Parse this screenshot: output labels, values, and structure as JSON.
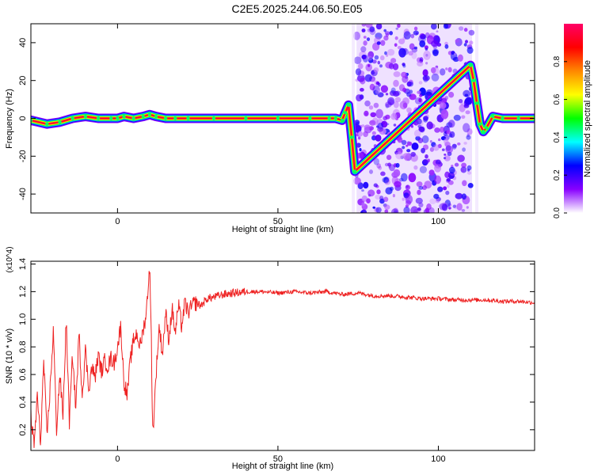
{
  "title": "C2E5.2025.244.06.50.E05",
  "chart_data": [
    {
      "type": "heatmap",
      "xlabel": "Height of straight line (km)",
      "ylabel": "Frequency (Hz)",
      "xlim": [
        -27,
        130
      ],
      "ylim": [
        -50,
        50
      ],
      "x_ticks": [
        0,
        50,
        100
      ],
      "y_ticks": [
        -40,
        -20,
        0,
        20,
        40
      ],
      "colorbar": {
        "label": "Normalized spectral amplitude",
        "range": [
          0,
          1
        ],
        "ticks": [
          "0.0",
          "0.2",
          "0.4",
          "0.6",
          "0.8"
        ],
        "tick_values": [
          0,
          0.2,
          0.4,
          0.6,
          0.8
        ],
        "colormap": [
          "#ffffff",
          "#8800ff",
          "#0000ff",
          "#00ffff",
          "#00ff00",
          "#ffff00",
          "#ff8800",
          "#ff0000",
          "#ff0066"
        ]
      },
      "ridge": {
        "x": [
          -27,
          -22,
          -18,
          -14,
          -10,
          -6,
          -2,
          0,
          2,
          5,
          8,
          10,
          12,
          15,
          18,
          22,
          30,
          40,
          50,
          60,
          66,
          68,
          70,
          71,
          72,
          73,
          74,
          110,
          111,
          112,
          113,
          114,
          115,
          117,
          120,
          125,
          130
        ],
        "y": [
          -1,
          -3,
          -2,
          0,
          1,
          0,
          0,
          0,
          1,
          0,
          1,
          2,
          1,
          0,
          0,
          0,
          0,
          0,
          0,
          0,
          0,
          0,
          -1,
          3,
          7,
          -10,
          -28,
          28,
          20,
          8,
          -3,
          -7,
          -5,
          1,
          0,
          0,
          0
        ],
        "peak_amplitude": 1.0
      },
      "noise_region": {
        "x_range": [
          74.5,
          110.5
        ],
        "y_range": [
          -50,
          50
        ],
        "amplitude_range": [
          0.05,
          0.25
        ]
      }
    },
    {
      "type": "line",
      "xlabel": "Height of straight line (km)",
      "ylabel": "SNR (10 * v/v)",
      "y_exponent": "(x10^4)",
      "xlim": [
        -27,
        130
      ],
      "ylim": [
        0.05,
        1.42
      ],
      "x_ticks": [
        0,
        50,
        100
      ],
      "y_ticks": [
        0.2,
        0.4,
        0.6,
        0.8,
        1.0,
        1.2,
        1.4
      ],
      "y_tick_labels": [
        "0.2",
        "0.4",
        "0.6",
        "0.8",
        "1.0",
        "1.2",
        "1.4"
      ],
      "color": "#ee2222",
      "series": [
        {
          "x": [
            -27,
            -26,
            -25,
            -24,
            -23,
            -22,
            -21,
            -20,
            -19,
            -18,
            -17,
            -16,
            -15,
            -14,
            -13,
            -12,
            -11,
            -10,
            -9,
            -8,
            -7,
            -6,
            -5,
            -4,
            -3,
            -2,
            -1,
            0,
            1,
            2,
            3,
            4,
            5,
            6,
            7,
            8,
            9,
            10,
            10.5,
            11,
            12,
            13,
            14,
            15,
            16,
            17,
            18,
            19,
            20,
            21,
            22,
            24,
            26,
            28,
            30,
            33,
            36,
            40,
            45,
            50,
            55,
            60,
            65,
            70,
            75,
            80,
            85,
            90,
            95,
            100,
            105,
            110,
            115,
            120,
            125,
            130
          ],
          "y": [
            0.3,
            0.08,
            0.45,
            0.1,
            0.7,
            0.15,
            0.5,
            0.92,
            0.2,
            0.6,
            0.3,
            1.0,
            0.25,
            0.75,
            0.35,
            0.9,
            0.45,
            0.78,
            0.5,
            0.65,
            0.58,
            0.74,
            0.62,
            0.7,
            0.66,
            0.72,
            0.68,
            0.8,
            0.95,
            0.55,
            0.45,
            0.7,
            0.85,
            0.9,
            0.8,
            0.92,
            1.05,
            1.4,
            0.9,
            0.15,
            0.6,
            0.95,
            0.75,
            1.05,
            0.85,
            1.08,
            0.9,
            1.1,
            0.95,
            1.12,
            1.05,
            1.12,
            1.1,
            1.15,
            1.16,
            1.18,
            1.19,
            1.2,
            1.2,
            1.19,
            1.2,
            1.19,
            1.2,
            1.18,
            1.19,
            1.17,
            1.17,
            1.16,
            1.15,
            1.15,
            1.14,
            1.14,
            1.14,
            1.13,
            1.13,
            1.12
          ]
        }
      ]
    }
  ]
}
